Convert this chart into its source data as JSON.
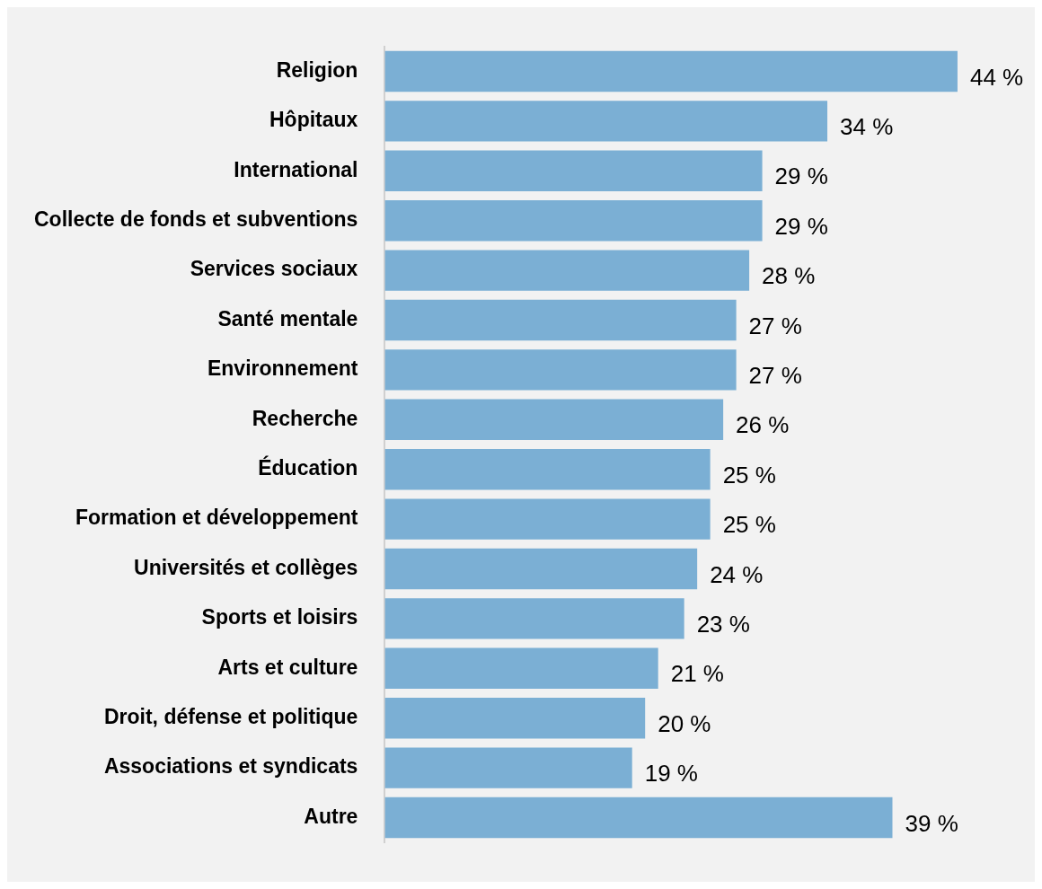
{
  "chart_data": {
    "type": "bar",
    "orientation": "horizontal",
    "categories": [
      "Religion",
      "Hôpitaux",
      "International",
      "Collecte de fonds et subventions",
      "Services sociaux",
      "Santé mentale",
      "Environnement",
      "Recherche",
      "Éducation",
      "Formation et développement",
      "Universités et collèges",
      "Sports et loisirs",
      "Arts et culture",
      "Droit, défense et politique",
      "Associations et syndicats",
      "Autre"
    ],
    "values": [
      44,
      34,
      29,
      29,
      28,
      27,
      27,
      26,
      25,
      25,
      24,
      23,
      21,
      20,
      19,
      39
    ],
    "value_labels": [
      "44 %",
      "34 %",
      "29 %",
      "29 %",
      "28 %",
      "27 %",
      "27 %",
      "26 %",
      "25 %",
      "25 %",
      "24 %",
      "23 %",
      "21 %",
      "20 %",
      "19 %",
      "39 %"
    ],
    "color": "#7bafd4",
    "legend": false
  }
}
